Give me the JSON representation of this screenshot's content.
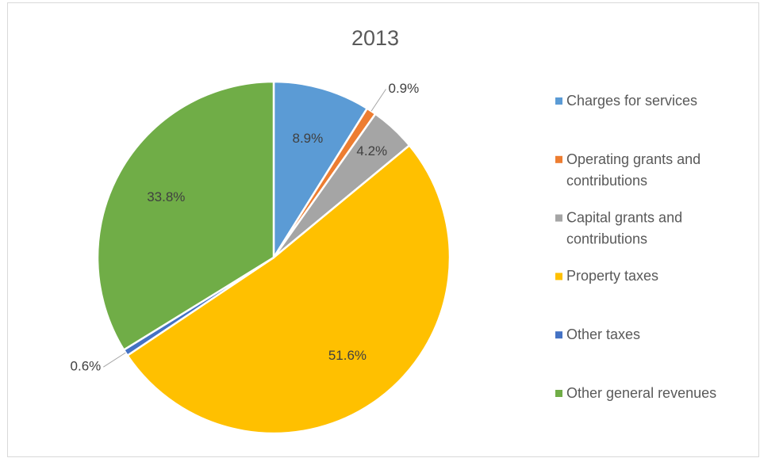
{
  "chart_data": {
    "type": "pie",
    "title": "2013",
    "categories": [
      "Charges for services",
      "Operating grants and contributions",
      "Capital grants and contributions",
      "Property taxes",
      "Other taxes",
      "Other general revenues"
    ],
    "values": [
      8.9,
      0.9,
      4.2,
      51.6,
      0.6,
      33.8
    ],
    "value_labels": [
      "8.9%",
      "0.9%",
      "4.2%",
      "51.6%",
      "0.6%",
      "33.8%"
    ],
    "colors": [
      "#5b9bd5",
      "#ed7d31",
      "#a5a5a5",
      "#ffc000",
      "#4472c4",
      "#70ad47"
    ],
    "legend": "right"
  }
}
